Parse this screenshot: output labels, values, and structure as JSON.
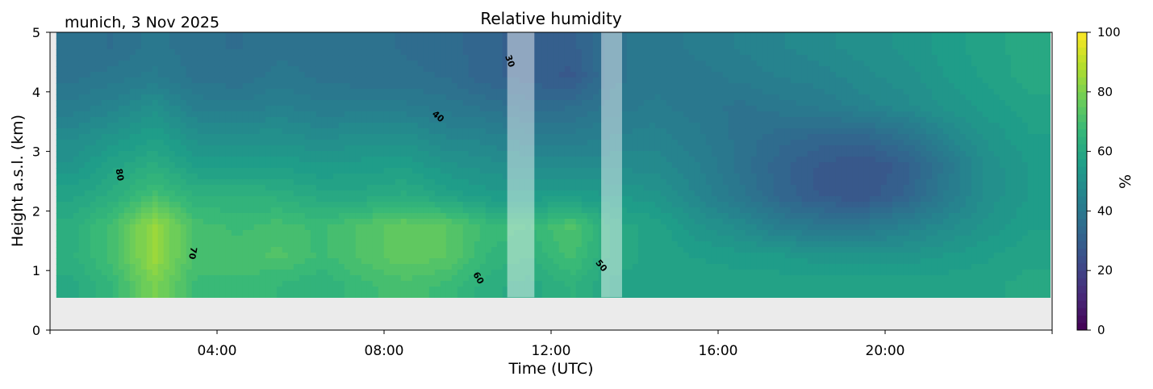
{
  "chart_data": {
    "type": "heatmap",
    "title": "Relative humidity",
    "subtitle": "munich, 3 Nov 2025",
    "xlabel": "Time (UTC)",
    "ylabel": "Height a.s.l. (km)",
    "xlim_hours": [
      0,
      24
    ],
    "ylim": [
      0,
      5
    ],
    "x_ticks": [
      "04:00",
      "08:00",
      "12:00",
      "16:00",
      "20:00"
    ],
    "x_tick_hours": [
      4,
      8,
      12,
      16,
      20
    ],
    "y_ticks": [
      "0",
      "1",
      "2",
      "3",
      "4",
      "5"
    ],
    "colorbar": {
      "label": "%",
      "range": [
        0,
        100
      ],
      "ticks": [
        "0",
        "20",
        "40",
        "60",
        "80",
        "100"
      ],
      "colormap": "viridis"
    },
    "background_color": "#ebebeb",
    "data_lowest_height_km": 0.55,
    "data_start_hour": 0.15,
    "data_end_hour": 23.95,
    "grid_times_hours": [
      0.5,
      1.5,
      2.5,
      3.5,
      4.5,
      5.5,
      6.5,
      7.5,
      8.5,
      9.5,
      10.5,
      11.5,
      12.5,
      13.5,
      14.5,
      15.5,
      16.5,
      17.5,
      18.5,
      19.5,
      20.5,
      21.5,
      22.5,
      23.5
    ],
    "grid_heights_km": [
      0.75,
      1.25,
      1.75,
      2.25,
      2.75,
      3.25,
      3.75,
      4.25,
      4.75
    ],
    "values": [
      [
        60,
        66,
        80,
        68,
        68,
        66,
        64,
        68,
        70,
        68,
        62,
        60,
        64,
        58,
        58,
        58,
        58,
        58,
        58,
        58,
        58,
        58,
        58,
        60
      ],
      [
        63,
        70,
        85,
        70,
        70,
        72,
        68,
        72,
        76,
        74,
        66,
        64,
        70,
        60,
        58,
        56,
        55,
        54,
        52,
        52,
        52,
        54,
        56,
        58
      ],
      [
        62,
        70,
        85,
        70,
        68,
        70,
        68,
        72,
        76,
        74,
        68,
        66,
        72,
        60,
        58,
        52,
        48,
        42,
        40,
        40,
        44,
        48,
        52,
        56
      ],
      [
        58,
        62,
        70,
        64,
        64,
        63,
        60,
        60,
        62,
        58,
        55,
        55,
        55,
        54,
        52,
        46,
        40,
        33,
        28,
        27,
        32,
        42,
        50,
        54
      ],
      [
        52,
        58,
        62,
        56,
        56,
        56,
        54,
        55,
        56,
        52,
        50,
        48,
        48,
        48,
        48,
        44,
        38,
        32,
        28,
        26,
        30,
        40,
        50,
        54
      ],
      [
        48,
        52,
        56,
        50,
        50,
        50,
        48,
        50,
        50,
        46,
        45,
        42,
        42,
        44,
        45,
        42,
        38,
        35,
        33,
        33,
        38,
        46,
        52,
        56
      ],
      [
        42,
        45,
        50,
        43,
        42,
        44,
        42,
        42,
        42,
        40,
        38,
        35,
        36,
        40,
        42,
        40,
        38,
        40,
        42,
        45,
        48,
        52,
        55,
        58
      ],
      [
        38,
        40,
        42,
        38,
        37,
        40,
        38,
        37,
        37,
        36,
        32,
        30,
        28,
        38,
        40,
        40,
        42,
        44,
        45,
        48,
        50,
        54,
        57,
        60
      ],
      [
        38,
        36,
        40,
        37,
        36,
        38,
        37,
        37,
        36,
        35,
        32,
        30,
        30,
        38,
        40,
        42,
        44,
        46,
        48,
        50,
        52,
        55,
        58,
        60
      ]
    ],
    "data_gaps_hours": [
      [
        10.95,
        11.6
      ],
      [
        13.2,
        13.7
      ]
    ],
    "contour_labels": [
      {
        "text": "80",
        "hour": 1.6,
        "km": 2.6,
        "angle": 80
      },
      {
        "text": "70",
        "hour": 3.35,
        "km": 1.3,
        "angle": 100
      },
      {
        "text": "30",
        "hour": 10.95,
        "km": 4.5,
        "angle": 70
      },
      {
        "text": "40",
        "hour": 9.25,
        "km": 3.55,
        "angle": 40
      },
      {
        "text": "50",
        "hour": 13.15,
        "km": 1.05,
        "angle": 50
      },
      {
        "text": "60",
        "hour": 10.2,
        "km": 0.85,
        "angle": 60
      }
    ]
  }
}
